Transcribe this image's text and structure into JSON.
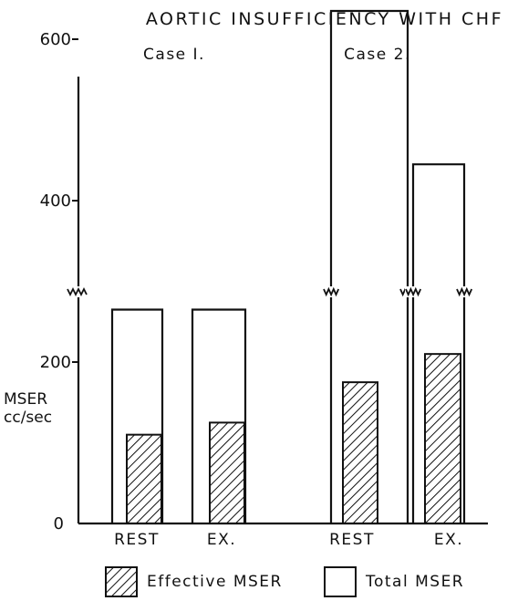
{
  "chart_data": {
    "type": "bar",
    "title": "AORTIC INSUFFICIENCY WITH CHF",
    "ylabel": [
      "MSER",
      "cc/sec"
    ],
    "ylim": [
      0,
      630
    ],
    "y_axis_break": true,
    "yticks": [
      0,
      200,
      400,
      600
    ],
    "ytick_labels": [
      "0",
      "200",
      "400",
      "600"
    ],
    "groups": [
      {
        "label": "Case I.",
        "categories": [
          "REST",
          "EX."
        ]
      },
      {
        "label": "Case 2.",
        "categories": [
          "REST",
          "EX."
        ]
      }
    ],
    "categories": [
      "REST",
      "EX.",
      "REST",
      "EX."
    ],
    "series": [
      {
        "name": "Total MSER",
        "values": [
          265,
          265,
          635,
          445
        ],
        "style": "open"
      },
      {
        "name": "Effective MSER",
        "values": [
          110,
          125,
          175,
          210
        ],
        "style": "hatched"
      }
    ],
    "legend": {
      "position": "bottom"
    }
  },
  "legend_items": [
    {
      "label": "Effective MSER",
      "style": "hatched"
    },
    {
      "label": "Total MSER",
      "style": "open"
    }
  ]
}
